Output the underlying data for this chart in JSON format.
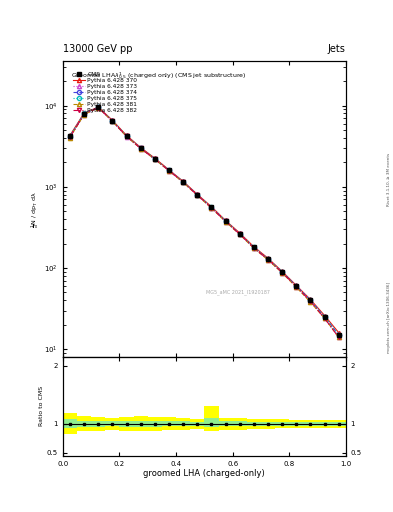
{
  "title_top": "13000 GeV pp",
  "title_right": "Jets",
  "xlabel": "groomed LHA (charged-only)",
  "ylabel_ratio": "Ratio to CMS",
  "watermark": "mcplots.cern.ch [arXiv:1306.3436]",
  "rivet_version": "Rivet 3.1.10, ≥ 3M events",
  "timestamp": "MG5_aMC 2021_I1920187",
  "x_data": [
    0.025,
    0.075,
    0.125,
    0.175,
    0.225,
    0.275,
    0.325,
    0.375,
    0.425,
    0.475,
    0.525,
    0.575,
    0.625,
    0.675,
    0.725,
    0.775,
    0.825,
    0.875,
    0.925,
    0.975
  ],
  "cms_data": [
    4200,
    7800,
    9500,
    6500,
    4200,
    3000,
    2200,
    1600,
    1150,
    800,
    560,
    380,
    265,
    180,
    130,
    90,
    60,
    40,
    25,
    15
  ],
  "pythia_370": [
    4300,
    8100,
    9600,
    6600,
    4300,
    3050,
    2250,
    1620,
    1170,
    810,
    570,
    385,
    270,
    183,
    132,
    91,
    61,
    41,
    26,
    16
  ],
  "pythia_373": [
    4100,
    7700,
    9400,
    6400,
    4150,
    2950,
    2180,
    1580,
    1140,
    790,
    550,
    374,
    260,
    176,
    127,
    88,
    59,
    39,
    24,
    14
  ],
  "pythia_374": [
    4150,
    7900,
    9500,
    6450,
    4200,
    2980,
    2200,
    1590,
    1150,
    795,
    556,
    378,
    263,
    178,
    128,
    89,
    60,
    40,
    25,
    15
  ],
  "pythia_375": [
    4250,
    8000,
    9550,
    6550,
    4250,
    3020,
    2220,
    1605,
    1160,
    802,
    562,
    381,
    266,
    180,
    130,
    90,
    60,
    40,
    25,
    15
  ],
  "pythia_381": [
    4050,
    7750,
    9450,
    6420,
    4170,
    2960,
    2185,
    1575,
    1135,
    785,
    548,
    372,
    259,
    175,
    126,
    87,
    58,
    38,
    24,
    14
  ],
  "pythia_382": [
    4080,
    7820,
    9480,
    6440,
    4180,
    2970,
    2192,
    1582,
    1142,
    790,
    552,
    375,
    261,
    177,
    127,
    88,
    59,
    39,
    24,
    14
  ],
  "series": [
    {
      "key": "pythia_370",
      "color": "#e8190e",
      "marker": "^",
      "ls": "-",
      "label": "Pythia 6.428 370"
    },
    {
      "key": "pythia_373",
      "color": "#cc44cc",
      "marker": "^",
      "ls": ":",
      "label": "Pythia 6.428 373"
    },
    {
      "key": "pythia_374",
      "color": "#4444dd",
      "marker": "o",
      "ls": "--",
      "label": "Pythia 6.428 374"
    },
    {
      "key": "pythia_375",
      "color": "#00bbbb",
      "marker": "o",
      "ls": ":",
      "label": "Pythia 6.428 375"
    },
    {
      "key": "pythia_381",
      "color": "#bb8800",
      "marker": "^",
      "ls": "--",
      "label": "Pythia 6.428 381"
    },
    {
      "key": "pythia_382",
      "color": "#cc0044",
      "marker": "v",
      "ls": "-.",
      "label": "Pythia 6.428 382"
    }
  ],
  "ratio_yellow_lo": [
    0.82,
    0.87,
    0.88,
    0.9,
    0.88,
    0.87,
    0.88,
    0.89,
    0.9,
    0.91,
    0.88,
    0.9,
    0.9,
    0.91,
    0.91,
    0.92,
    0.93,
    0.93,
    0.93,
    0.93
  ],
  "ratio_yellow_hi": [
    1.18,
    1.13,
    1.12,
    1.1,
    1.12,
    1.13,
    1.12,
    1.11,
    1.1,
    1.09,
    1.3,
    1.1,
    1.1,
    1.09,
    1.09,
    1.08,
    1.07,
    1.07,
    1.07,
    1.07
  ],
  "ratio_green_lo": [
    0.92,
    0.95,
    0.95,
    0.96,
    0.95,
    0.95,
    0.95,
    0.96,
    0.96,
    0.97,
    0.95,
    0.96,
    0.96,
    0.97,
    0.97,
    0.97,
    0.97,
    0.97,
    0.97,
    0.97
  ],
  "ratio_green_hi": [
    1.08,
    1.05,
    1.05,
    1.04,
    1.05,
    1.05,
    1.05,
    1.04,
    1.04,
    1.03,
    1.1,
    1.04,
    1.04,
    1.03,
    1.03,
    1.03,
    1.03,
    1.03,
    1.03,
    1.03
  ]
}
